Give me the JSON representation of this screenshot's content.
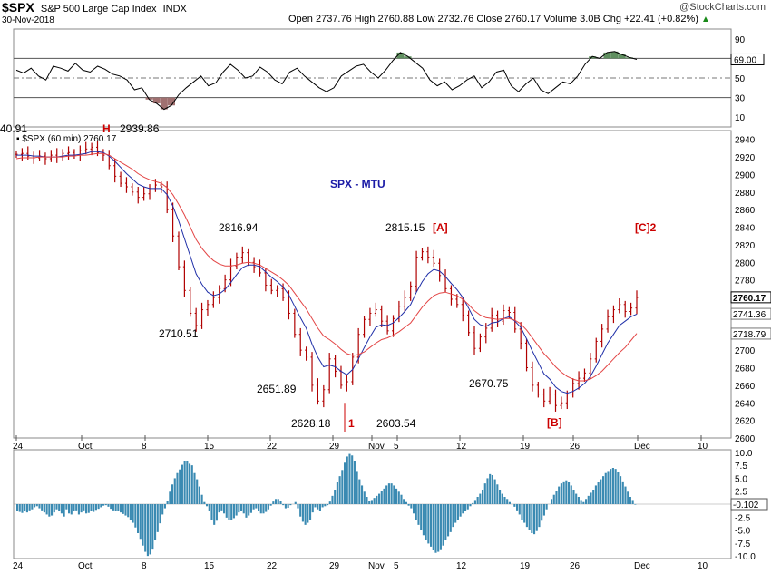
{
  "header": {
    "symbol": "$SPX",
    "name": "S&P 500 Large Cap Index",
    "exchange": "INDX",
    "date": "30-Nov-2018",
    "quote": "Open 2737.76  High 2760.88  Low 2732.76  Close 2760.17  Volume 3.0B  Chg +22.41 (+0.82%)",
    "arrow": "▲",
    "watermark": "@StockCharts.com"
  },
  "chart_data": [
    {
      "type": "line",
      "panel": "rsi",
      "ylim": [
        0,
        100
      ],
      "y_ticks": [
        90,
        70,
        50,
        30,
        10
      ],
      "levels": [
        70,
        50,
        30
      ],
      "value_label": "69.00",
      "values": [
        58,
        55,
        60,
        52,
        48,
        62,
        60,
        57,
        65,
        58,
        56,
        62,
        59,
        54,
        52,
        48,
        38,
        40,
        28,
        24,
        18,
        22,
        33,
        40,
        46,
        52,
        42,
        45,
        56,
        64,
        58,
        50,
        52,
        61,
        56,
        48,
        44,
        56,
        60,
        52,
        46,
        40,
        36,
        40,
        52,
        57,
        62,
        64,
        56,
        50,
        58,
        68,
        76,
        72,
        66,
        60,
        48,
        42,
        46,
        38,
        42,
        48,
        52,
        40,
        46,
        56,
        58,
        42,
        36,
        44,
        50,
        38,
        34,
        40,
        46,
        44,
        52,
        64,
        72,
        70,
        76,
        77,
        74,
        71,
        69
      ]
    },
    {
      "type": "line",
      "panel": "price",
      "title": "$SPX (60 min) 2760.17",
      "annotation": "SPX - MTU",
      "ylim": [
        2600,
        2950
      ],
      "y_ticks": [
        2940,
        2920,
        2900,
        2880,
        2860,
        2840,
        2820,
        2800,
        2780,
        2760,
        2740,
        2720,
        2700,
        2680,
        2660,
        2640,
        2620,
        2600
      ],
      "x_ticks": [
        "24",
        "Oct",
        "8",
        "15",
        "22",
        "29",
        "Nov",
        "5",
        "12",
        "19",
        "26",
        "Dec",
        "10"
      ],
      "series": [
        {
          "values": [
            2923,
            2924,
            2921,
            2919,
            2921,
            2918,
            2922,
            2920,
            2924,
            2925,
            2922,
            2927,
            2929,
            2931,
            2925,
            2922,
            2910,
            2898,
            2890,
            2886,
            2880,
            2874,
            2878,
            2884,
            2888,
            2886,
            2860,
            2830,
            2795,
            2768,
            2742,
            2728,
            2746,
            2752,
            2760,
            2770,
            2780,
            2796,
            2806,
            2811,
            2800,
            2795,
            2788,
            2774,
            2768,
            2770,
            2760,
            2742,
            2718,
            2700,
            2692,
            2660,
            2642,
            2655,
            2690,
            2676,
            2660,
            2664,
            2692,
            2718,
            2735,
            2742,
            2746,
            2733,
            2722,
            2736,
            2750,
            2760,
            2773,
            2806,
            2812,
            2806,
            2799,
            2785,
            2770,
            2758,
            2752,
            2740,
            2720,
            2702,
            2715,
            2725,
            2740,
            2733,
            2745,
            2743,
            2724,
            2708,
            2680,
            2660,
            2650,
            2642,
            2650,
            2637,
            2640,
            2650,
            2662,
            2668,
            2674,
            2690,
            2710,
            2724,
            2738,
            2746,
            2752,
            2744,
            2748,
            2760
          ]
        },
        {
          "values": [
            2922,
            2922,
            2922,
            2921,
            2921,
            2920,
            2920,
            2920,
            2921,
            2922,
            2922,
            2923,
            2924,
            2926,
            2926,
            2925,
            2921,
            2915,
            2908,
            2901,
            2895,
            2889,
            2886,
            2884,
            2884,
            2884,
            2877,
            2864,
            2847,
            2827,
            2807,
            2787,
            2775,
            2766,
            2762,
            2764,
            2769,
            2777,
            2786,
            2794,
            2797,
            2797,
            2795,
            2789,
            2783,
            2778,
            2772,
            2763,
            2750,
            2737,
            2725,
            2707,
            2692,
            2681,
            2683,
            2681,
            2676,
            2672,
            2678,
            2690,
            2703,
            2715,
            2726,
            2729,
            2728,
            2731,
            2737,
            2744,
            2752,
            2766,
            2778,
            2787,
            2792,
            2790,
            2784,
            2776,
            2769,
            2760,
            2748,
            2735,
            2729,
            2727,
            2731,
            2732,
            2736,
            2738,
            2733,
            2726,
            2713,
            2699,
            2686,
            2673,
            2667,
            2658,
            2653,
            2651,
            2653,
            2657,
            2662,
            2670,
            2682,
            2695,
            2708,
            2718,
            2728,
            2733,
            2738,
            2741
          ]
        },
        {
          "values": [
            2918,
            2919,
            2919,
            2919,
            2920,
            2920,
            2920,
            2920,
            2920,
            2921,
            2921,
            2922,
            2922,
            2923,
            2924,
            2924,
            2922,
            2918,
            2914,
            2910,
            2906,
            2901,
            2897,
            2894,
            2892,
            2890,
            2885,
            2877,
            2866,
            2854,
            2840,
            2826,
            2816,
            2808,
            2802,
            2798,
            2796,
            2796,
            2797,
            2799,
            2800,
            2799,
            2797,
            2793,
            2789,
            2785,
            2780,
            2774,
            2765,
            2756,
            2747,
            2736,
            2725,
            2716,
            2712,
            2707,
            2701,
            2696,
            2694,
            2695,
            2698,
            2703,
            2708,
            2712,
            2714,
            2717,
            2721,
            2726,
            2731,
            2740,
            2749,
            2756,
            2762,
            2765,
            2766,
            2764,
            2762,
            2758,
            2752,
            2745,
            2740,
            2737,
            2736,
            2735,
            2736,
            2736,
            2734,
            2730,
            2723,
            2714,
            2705,
            2696,
            2689,
            2681,
            2675,
            2670,
            2667,
            2665,
            2665,
            2667,
            2671,
            2676,
            2683,
            2690,
            2697,
            2703,
            2711,
            2719
          ]
        }
      ],
      "price_labels": [
        "2760.17",
        "2741.36",
        "2718.79"
      ],
      "left_label": "40.91",
      "high_marker": "H",
      "high_value": "2939.86",
      "annotations": [
        "2816.94",
        "2710.51",
        "2651.89",
        "2628.18",
        "1",
        "2603.54",
        "2815.15",
        "[A]",
        "2670.75",
        "[B]",
        "[C]2"
      ]
    },
    {
      "type": "bar",
      "panel": "histogram",
      "ylim": [
        -10.5,
        10.5
      ],
      "y_ticks": [
        "10.0",
        "7.5",
        "5.0",
        "2.5",
        "-0.102",
        "-2.5",
        "-5.0",
        "-7.5",
        "-10.0"
      ],
      "values": [
        -1.4,
        -1.5,
        -1.7,
        -1.4,
        -1.6,
        -1.2,
        -1.0,
        -0.6,
        -0.4,
        -0.8,
        -1.2,
        -1.6,
        -2.0,
        -2.4,
        -2.2,
        -1.6,
        -1.0,
        -1.4,
        -1.8,
        -2.4,
        -1.0,
        -1.8,
        -2.0,
        -1.4,
        -1.2,
        -2.0,
        -1.6,
        -1.2,
        -1.8,
        -1.7,
        -1.4,
        -1.5,
        -1.1,
        -0.9,
        -0.6,
        -0.3,
        -0.2,
        -0.5,
        -0.9,
        -1.2,
        -1.3,
        -1.4,
        -1.6,
        -1.9,
        -2.2,
        -2.5,
        -3.0,
        -3.6,
        -4.5,
        -5.6,
        -6.7,
        -8.0,
        -9.2,
        -10.0,
        -9.7,
        -8.6,
        -7.0,
        -5.4,
        -3.7,
        -2.0,
        -0.8,
        0.6,
        2.4,
        3.8,
        5.0,
        6.0,
        6.7,
        7.6,
        8.4,
        8.4,
        7.8,
        7.5,
        6.0,
        4.8,
        3.4,
        1.8,
        0.4,
        -0.4,
        -1.4,
        -3.0,
        -4.0,
        -3.2,
        -1.6,
        -1.2,
        -1.8,
        -2.6,
        -3.1,
        -3.0,
        -2.7,
        -2.2,
        -1.6,
        -1.4,
        -1.8,
        -2.6,
        -2.2,
        -1.7,
        -1.0,
        -0.8,
        -1.4,
        -1.8,
        -1.8,
        -1.5,
        -1.0,
        -0.3,
        0.5,
        1.0,
        1.0,
        0.6,
        -0.2,
        -0.8,
        -0.7,
        -0.2,
        0.0,
        0.4,
        -0.8,
        -2.4,
        -3.4,
        -4.0,
        -3.6,
        -3.0,
        -1.6,
        -0.6,
        -1.0,
        -1.4,
        -0.6,
        -0.4,
        -0.2,
        0.5,
        1.6,
        2.8,
        4.2,
        5.4,
        6.6,
        8.0,
        9.2,
        9.7,
        9.4,
        8.4,
        6.4,
        4.8,
        3.6,
        2.4,
        1.4,
        0.6,
        0.8,
        1.2,
        1.6,
        2.0,
        2.6,
        3.0,
        3.6,
        4.0,
        4.0,
        3.6,
        3.0,
        2.4,
        1.8,
        1.0,
        0.4,
        -0.3,
        -0.8,
        -1.8,
        -3.0,
        -4.0,
        -5.0,
        -6.0,
        -7.0,
        -7.6,
        -8.2,
        -8.8,
        -9.4,
        -9.2,
        -8.7,
        -8.0,
        -7.0,
        -6.2,
        -5.4,
        -4.4,
        -3.6,
        -3.0,
        -2.4,
        -1.8,
        -1.4,
        -1.0,
        -0.4,
        0.2,
        0.8,
        1.4,
        2.0,
        2.8,
        4.0,
        5.0,
        5.8,
        5.6,
        4.8,
        3.8,
        2.8,
        2.0,
        1.4,
        1.0,
        0.4,
        0.0,
        -0.5,
        -1.2,
        -2.0,
        -3.0,
        -3.6,
        -4.4,
        -5.0,
        -5.6,
        -5.8,
        -5.2,
        -4.4,
        -3.2,
        -2.2,
        -1.0,
        0.0,
        1.0,
        1.8,
        2.6,
        3.4,
        4.0,
        4.4,
        4.6,
        4.2,
        3.6,
        2.8,
        2.0,
        1.4,
        0.8,
        0.4,
        1.0,
        1.6,
        2.2,
        2.8,
        3.6,
        4.2,
        4.8,
        5.4,
        6.0,
        6.4,
        6.8,
        7.0,
        6.8,
        6.2,
        5.4,
        4.4,
        3.4,
        2.4,
        1.4,
        0.8,
        -0.1
      ]
    }
  ],
  "colors": {
    "price_bar": "#b00000",
    "ma_fast": "#1f2fa8",
    "ma_slow": "#e34545",
    "rsi_line": "#000000",
    "rsi_overbought": "#5f8f5f",
    "rsi_oversold": "#a07070",
    "histogram": "#3a8ab2",
    "annotation_red": "#cc0000",
    "annotation_blue": "#1a1aa6"
  }
}
